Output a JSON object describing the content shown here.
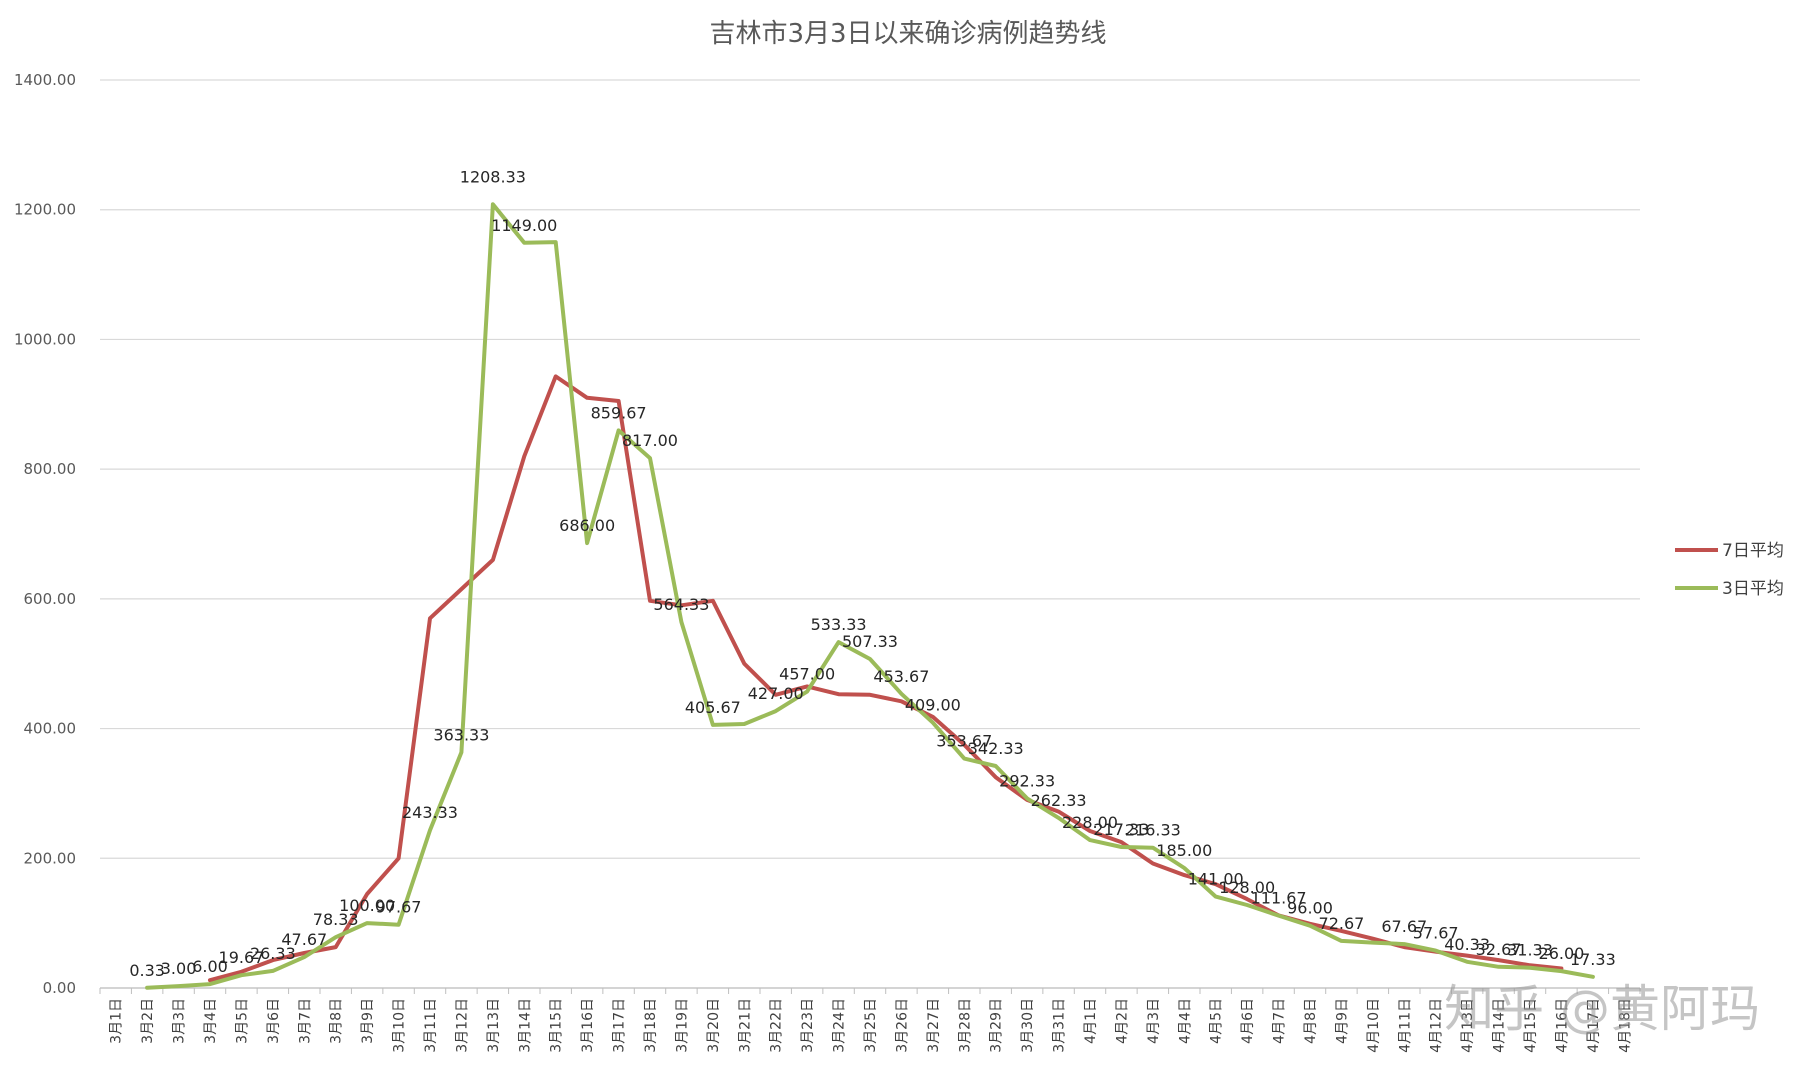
{
  "chart_data": {
    "type": "line",
    "title": "吉林市3月3日以来确诊病例趋势线",
    "ylim": [
      0,
      1400
    ],
    "yticks": [
      "0.00",
      "200.00",
      "400.00",
      "600.00",
      "800.00",
      "1000.00",
      "1200.00",
      "1400.00"
    ],
    "grid": true,
    "legend_position": "right",
    "categories": [
      "3月1日",
      "3月2日",
      "3月3日",
      "3月4日",
      "3月5日",
      "3月6日",
      "3月7日",
      "3月8日",
      "3月9日",
      "3月10日",
      "3月11日",
      "3月12日",
      "3月13日",
      "3月14日",
      "3月15日",
      "3月16日",
      "3月17日",
      "3月18日",
      "3月19日",
      "3月20日",
      "3月21日",
      "3月22日",
      "3月23日",
      "3月24日",
      "3月25日",
      "3月26日",
      "3月27日",
      "3月28日",
      "3月29日",
      "3月30日",
      "3月31日",
      "4月1日",
      "4月2日",
      "4月3日",
      "4月4日",
      "4月5日",
      "4月6日",
      "4月7日",
      "4月8日",
      "4月9日",
      "4月10日",
      "4月11日",
      "4月12日",
      "4月13日",
      "4月14日",
      "4月15日",
      "4月16日",
      "4月17日",
      "4月18日"
    ],
    "series": [
      {
        "name": "7日平均",
        "color": "#c0504d",
        "values": [
          null,
          null,
          null,
          12,
          25,
          43,
          54,
          63,
          145,
          200,
          570,
          615,
          660,
          820,
          943,
          910,
          905,
          597,
          590,
          597,
          500,
          452,
          465,
          453,
          452,
          442,
          418,
          375,
          325,
          290,
          272,
          242,
          225,
          192,
          174,
          160,
          137,
          112,
          99,
          88,
          76,
          63,
          56,
          50,
          43,
          35,
          30,
          null,
          null
        ],
        "labels": []
      },
      {
        "name": "3日平均",
        "color": "#9bbb59",
        "values": [
          null,
          0.33,
          3.0,
          6.0,
          19.67,
          26.33,
          47.67,
          78.33,
          100.0,
          97.67,
          243.33,
          363.33,
          1208.33,
          1149.0,
          1150.0,
          686.0,
          859.67,
          817.0,
          564.33,
          405.67,
          407.0,
          427.0,
          457.0,
          533.33,
          507.33,
          453.67,
          409.0,
          353.67,
          342.33,
          292.33,
          262.33,
          228.0,
          217.33,
          216.33,
          185.0,
          141.0,
          128.0,
          111.67,
          96.0,
          72.67,
          70.0,
          67.67,
          57.67,
          40.33,
          32.67,
          31.33,
          26.0,
          17.33,
          null
        ],
        "labels": [
          "",
          "0.33",
          "3.00",
          "6.00",
          "19.67",
          "26.33",
          "47.67",
          "78.33",
          "100.00",
          "97.67",
          "243.33",
          "363.33",
          "1208.33",
          "1149.00",
          "",
          "686.00",
          "859.67",
          "817.00",
          "564.33",
          "405.67",
          "",
          "427.00",
          "457.00",
          "533.33",
          "507.33",
          "453.67",
          "409.00",
          "353.67",
          "342.33",
          "292.33",
          "262.33",
          "228.00",
          "217.33",
          "216.33",
          "185.00",
          "141.00",
          "128.00",
          "111.67",
          "96.00",
          "72.67",
          "",
          "67.67",
          "57.67",
          "40.33",
          "32.67",
          "31.33",
          "26.00",
          "17.33",
          ""
        ]
      }
    ]
  },
  "watermark": "知乎 @黄阿玛"
}
